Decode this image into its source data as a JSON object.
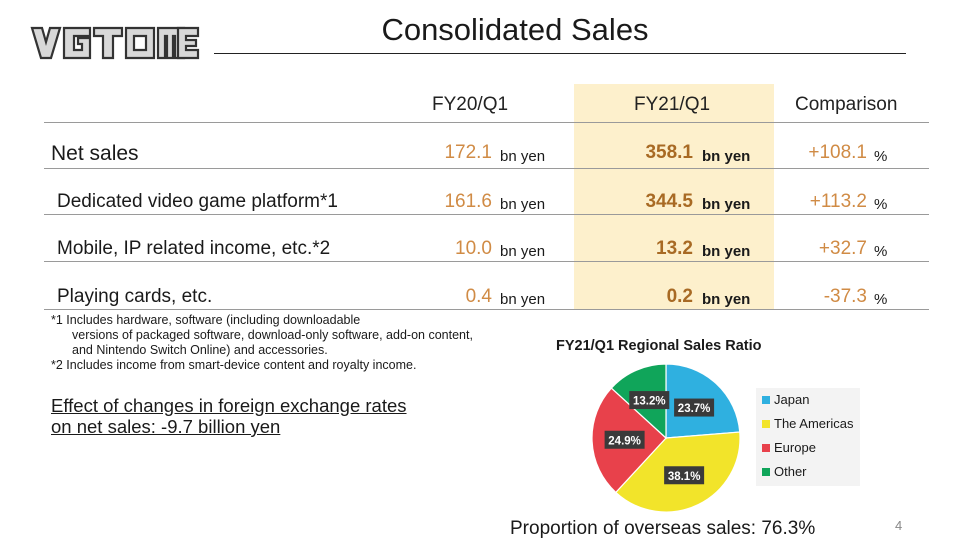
{
  "logo_text": "VGTOME",
  "title": "Consolidated Sales",
  "headers": {
    "col1": "FY20/Q1",
    "col2": "FY21/Q1",
    "col3": "Comparison"
  },
  "rows": [
    {
      "label": "Net sales",
      "fy20": "172.1",
      "fy20_unit": "bn yen",
      "fy21": "358.1",
      "fy21_unit": "bn yen",
      "comp": "+108.1",
      "comp_unit": "%"
    },
    {
      "label": "Dedicated video game platform*1",
      "fy20": "161.6",
      "fy20_unit": "bn yen",
      "fy21": "344.5",
      "fy21_unit": "bn yen",
      "comp": "+113.2",
      "comp_unit": "%"
    },
    {
      "label": "Mobile, IP related income, etc.*2",
      "fy20": "10.0",
      "fy20_unit": "bn yen",
      "fy21": "13.2",
      "fy21_unit": "bn yen",
      "comp": "+32.7",
      "comp_unit": "%"
    },
    {
      "label": "Playing cards, etc.",
      "fy20": "0.4",
      "fy20_unit": "bn yen",
      "fy21": "0.2",
      "fy21_unit": "bn yen",
      "comp": "-37.3",
      "comp_unit": "%"
    }
  ],
  "notes": {
    "n1_line1": "*1 Includes hardware, software (including downloadable",
    "n1_line2": "versions of packaged software, download-only software, add-on content,",
    "n1_line3": "and Nintendo Switch Online) and accessories.",
    "n2": "*2 Includes income from smart-device content and royalty income."
  },
  "fx": {
    "line1": "Effect of changes in foreign exchange rates",
    "line2": "on net sales: -9.7 billion yen"
  },
  "chart_data": {
    "type": "pie",
    "title": "FY21/Q1 Regional Sales Ratio",
    "categories": [
      "Japan",
      "The Americas",
      "Europe",
      "Other"
    ],
    "values": [
      23.7,
      38.1,
      24.9,
      13.2
    ],
    "value_labels": [
      "23.7%",
      "38.1%",
      "24.9%",
      "13.2%"
    ],
    "colors": [
      "#2fb0e0",
      "#f2e42a",
      "#e8414b",
      "#10a55a"
    ],
    "legend_position": "right"
  },
  "overseas": "Proportion of overseas sales: 76.3%",
  "page_number": "4"
}
